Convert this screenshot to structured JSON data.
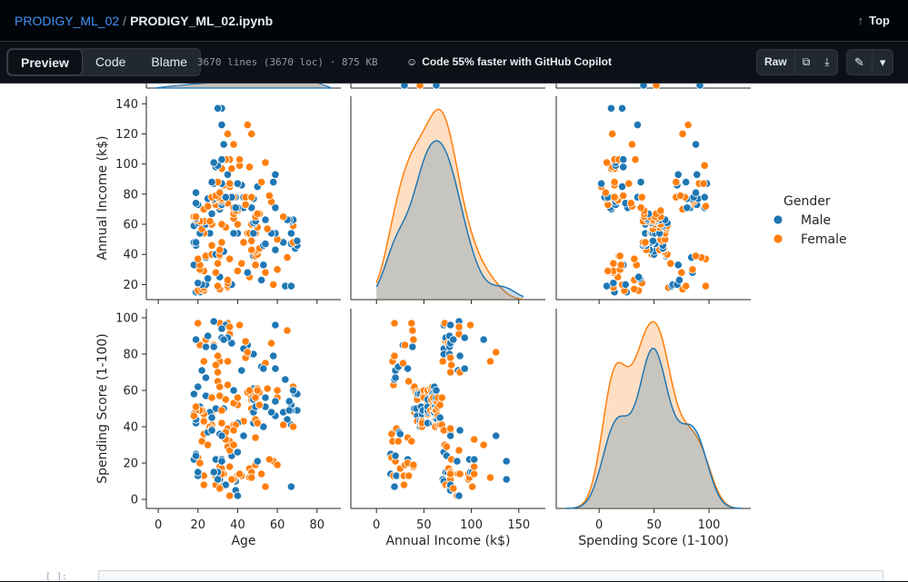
{
  "breadcrumb": {
    "repo": "PRODIGY_ML_02",
    "separator": "/",
    "file": "PRODIGY_ML_02.ipynb"
  },
  "top_link": {
    "label": "Top"
  },
  "toolbar": {
    "tabs": [
      "Preview",
      "Code",
      "Blame"
    ],
    "file_info": "3670 lines (3670 loc) · 875 KB",
    "copilot": "Code 55% faster with GitHub Copilot",
    "raw_label": "Raw"
  },
  "legend": {
    "title": "Gender",
    "items": [
      {
        "label": "Male",
        "color": "#1f77b4"
      },
      {
        "label": "Female",
        "color": "#ff7f0e"
      }
    ]
  },
  "bottom": {
    "prompt": "[ ]:"
  },
  "chart_data": {
    "type": "pairplot",
    "variables": [
      "Age",
      "Annual Income (k$)",
      "Spending Score (1-100)"
    ],
    "hue": "Gender",
    "hue_levels": [
      "Male",
      "Female"
    ],
    "colors": {
      "Male": "#1f77b4",
      "Female": "#ff7f0e"
    },
    "axes": {
      "income_y": {
        "label": "Annual Income (k$)",
        "ticks": [
          20,
          40,
          60,
          80,
          100,
          120,
          140
        ],
        "range": [
          10,
          145
        ]
      },
      "score_y": {
        "label": "Spending Score (1-100)",
        "ticks": [
          0,
          20,
          40,
          60,
          80,
          100
        ],
        "range": [
          -5,
          105
        ]
      },
      "age_x": {
        "label": "Age",
        "ticks": [
          0,
          20,
          40,
          60,
          80
        ],
        "range": [
          -6,
          92
        ]
      },
      "income_x": {
        "label": "Annual Income (k$)",
        "ticks": [
          0,
          50,
          100,
          150
        ],
        "range": [
          -27,
          178
        ]
      },
      "score_x": {
        "label": "Spending Score (1-100)",
        "ticks": [
          0,
          50,
          100
        ],
        "range": [
          -39,
          138
        ]
      }
    },
    "scatter": {
      "age_vs_income": [
        {
          "x": 19,
          "y": 15,
          "g": "Male"
        },
        {
          "x": 21,
          "y": 15,
          "g": "Male"
        },
        {
          "x": 20,
          "y": 16,
          "g": "Female"
        },
        {
          "x": 23,
          "y": 16,
          "g": "Female"
        },
        {
          "x": 31,
          "y": 17,
          "g": "Female"
        },
        {
          "x": 22,
          "y": 17,
          "g": "Female"
        },
        {
          "x": 35,
          "y": 18,
          "g": "Female"
        },
        {
          "x": 23,
          "y": 18,
          "g": "Female"
        },
        {
          "x": 64,
          "y": 19,
          "g": "Male"
        },
        {
          "x": 30,
          "y": 19,
          "g": "Female"
        },
        {
          "x": 67,
          "y": 19,
          "g": "Male"
        },
        {
          "x": 35,
          "y": 19,
          "g": "Female"
        },
        {
          "x": 58,
          "y": 20,
          "g": "Female"
        },
        {
          "x": 24,
          "y": 20,
          "g": "Male"
        },
        {
          "x": 37,
          "y": 20,
          "g": "Male"
        },
        {
          "x": 22,
          "y": 20,
          "g": "Male"
        },
        {
          "x": 35,
          "y": 21,
          "g": "Female"
        },
        {
          "x": 20,
          "y": 21,
          "g": "Male"
        },
        {
          "x": 52,
          "y": 23,
          "g": "Male"
        },
        {
          "x": 35,
          "y": 23,
          "g": "Female"
        },
        {
          "x": 46,
          "y": 25,
          "g": "Female"
        },
        {
          "x": 25,
          "y": 24,
          "g": "Male"
        },
        {
          "x": 31,
          "y": 25,
          "g": "Male"
        },
        {
          "x": 29,
          "y": 28,
          "g": "Female"
        },
        {
          "x": 54,
          "y": 28,
          "g": "Female"
        },
        {
          "x": 45,
          "y": 28,
          "g": "Male"
        },
        {
          "x": 40,
          "y": 29,
          "g": "Female"
        },
        {
          "x": 23,
          "y": 29,
          "g": "Female"
        },
        {
          "x": 60,
          "y": 30,
          "g": "Female"
        },
        {
          "x": 21,
          "y": 30,
          "g": "Female"
        },
        {
          "x": 53,
          "y": 33,
          "g": "Male"
        },
        {
          "x": 18,
          "y": 33,
          "g": "Male"
        },
        {
          "x": 49,
          "y": 33,
          "g": "Female"
        },
        {
          "x": 21,
          "y": 33,
          "g": "Female"
        },
        {
          "x": 42,
          "y": 34,
          "g": "Female"
        },
        {
          "x": 30,
          "y": 34,
          "g": "Female"
        },
        {
          "x": 36,
          "y": 37,
          "g": "Female"
        },
        {
          "x": 20,
          "y": 37,
          "g": "Female"
        },
        {
          "x": 65,
          "y": 38,
          "g": "Female"
        },
        {
          "x": 24,
          "y": 38,
          "g": "Male"
        },
        {
          "x": 48,
          "y": 39,
          "g": "Male"
        },
        {
          "x": 31,
          "y": 39,
          "g": "Female"
        },
        {
          "x": 49,
          "y": 39,
          "g": "Female"
        },
        {
          "x": 24,
          "y": 39,
          "g": "Female"
        },
        {
          "x": 50,
          "y": 40,
          "g": "Female"
        },
        {
          "x": 27,
          "y": 40,
          "g": "Female"
        },
        {
          "x": 29,
          "y": 40,
          "g": "Male"
        },
        {
          "x": 31,
          "y": 40,
          "g": "Female"
        },
        {
          "x": 49,
          "y": 42,
          "g": "Female"
        },
        {
          "x": 33,
          "y": 42,
          "g": "Male"
        },
        {
          "x": 31,
          "y": 43,
          "g": "Female"
        },
        {
          "x": 59,
          "y": 43,
          "g": "Male"
        },
        {
          "x": 50,
          "y": 43,
          "g": "Female"
        },
        {
          "x": 47,
          "y": 43,
          "g": "Female"
        },
        {
          "x": 51,
          "y": 44,
          "g": "Female"
        },
        {
          "x": 69,
          "y": 44,
          "g": "Male"
        },
        {
          "x": 27,
          "y": 46,
          "g": "Female"
        },
        {
          "x": 53,
          "y": 46,
          "g": "Male"
        },
        {
          "x": 70,
          "y": 46,
          "g": "Male"
        },
        {
          "x": 19,
          "y": 46,
          "g": "Male"
        },
        {
          "x": 67,
          "y": 47,
          "g": "Male"
        },
        {
          "x": 54,
          "y": 47,
          "g": "Male"
        },
        {
          "x": 63,
          "y": 48,
          "g": "Male"
        },
        {
          "x": 18,
          "y": 48,
          "g": "Male"
        },
        {
          "x": 43,
          "y": 48,
          "g": "Female"
        },
        {
          "x": 68,
          "y": 48,
          "g": "Female"
        },
        {
          "x": 19,
          "y": 48,
          "g": "Male"
        },
        {
          "x": 32,
          "y": 48,
          "g": "Female"
        },
        {
          "x": 70,
          "y": 49,
          "g": "Male"
        },
        {
          "x": 47,
          "y": 49,
          "g": "Female"
        },
        {
          "x": 60,
          "y": 50,
          "g": "Female"
        },
        {
          "x": 60,
          "y": 50,
          "g": "Female"
        },
        {
          "x": 59,
          "y": 54,
          "g": "Male"
        },
        {
          "x": 26,
          "y": 54,
          "g": "Male"
        },
        {
          "x": 45,
          "y": 54,
          "g": "Female"
        },
        {
          "x": 40,
          "y": 54,
          "g": "Male"
        },
        {
          "x": 23,
          "y": 54,
          "g": "Female"
        },
        {
          "x": 49,
          "y": 54,
          "g": "Female"
        },
        {
          "x": 57,
          "y": 54,
          "g": "Male"
        },
        {
          "x": 38,
          "y": 54,
          "g": "Male"
        },
        {
          "x": 67,
          "y": 54,
          "g": "Male"
        },
        {
          "x": 46,
          "y": 54,
          "g": "Female"
        },
        {
          "x": 21,
          "y": 54,
          "g": "Male"
        },
        {
          "x": 48,
          "y": 54,
          "g": "Male"
        },
        {
          "x": 55,
          "y": 57,
          "g": "Female"
        },
        {
          "x": 22,
          "y": 57,
          "g": "Female"
        },
        {
          "x": 34,
          "y": 58,
          "g": "Female"
        },
        {
          "x": 50,
          "y": 58,
          "g": "Female"
        },
        {
          "x": 68,
          "y": 59,
          "g": "Female"
        },
        {
          "x": 18,
          "y": 59,
          "g": "Male"
        },
        {
          "x": 48,
          "y": 60,
          "g": "Male"
        },
        {
          "x": 40,
          "y": 60,
          "g": "Female"
        },
        {
          "x": 32,
          "y": 60,
          "g": "Female"
        },
        {
          "x": 24,
          "y": 60,
          "g": "Male"
        },
        {
          "x": 47,
          "y": 60,
          "g": "Female"
        },
        {
          "x": 27,
          "y": 60,
          "g": "Female"
        },
        {
          "x": 48,
          "y": 61,
          "g": "Male"
        },
        {
          "x": 20,
          "y": 61,
          "g": "Male"
        },
        {
          "x": 23,
          "y": 62,
          "g": "Female"
        },
        {
          "x": 49,
          "y": 62,
          "g": "Female"
        },
        {
          "x": 67,
          "y": 62,
          "g": "Male"
        },
        {
          "x": 26,
          "y": 62,
          "g": "Female"
        },
        {
          "x": 49,
          "y": 62,
          "g": "Male"
        },
        {
          "x": 21,
          "y": 62,
          "g": "Female"
        },
        {
          "x": 66,
          "y": 63,
          "g": "Male"
        },
        {
          "x": 54,
          "y": 63,
          "g": "Male"
        },
        {
          "x": 68,
          "y": 63,
          "g": "Male"
        },
        {
          "x": 66,
          "y": 63,
          "g": "Male"
        },
        {
          "x": 65,
          "y": 63,
          "g": "Male"
        },
        {
          "x": 19,
          "y": 63,
          "g": "Female"
        },
        {
          "x": 38,
          "y": 64,
          "g": "Female"
        },
        {
          "x": 19,
          "y": 64,
          "g": "Male"
        },
        {
          "x": 18,
          "y": 65,
          "g": "Female"
        },
        {
          "x": 19,
          "y": 65,
          "g": "Female"
        },
        {
          "x": 63,
          "y": 65,
          "g": "Female"
        },
        {
          "x": 49,
          "y": 65,
          "g": "Female"
        },
        {
          "x": 51,
          "y": 67,
          "g": "Female"
        },
        {
          "x": 50,
          "y": 67,
          "g": "Female"
        },
        {
          "x": 27,
          "y": 67,
          "g": "Male"
        },
        {
          "x": 38,
          "y": 67,
          "g": "Female"
        },
        {
          "x": 40,
          "y": 69,
          "g": "Female"
        },
        {
          "x": 39,
          "y": 69,
          "g": "Female"
        },
        {
          "x": 23,
          "y": 70,
          "g": "Female"
        },
        {
          "x": 31,
          "y": 70,
          "g": "Male"
        },
        {
          "x": 43,
          "y": 71,
          "g": "Male"
        },
        {
          "x": 40,
          "y": 71,
          "g": "Male"
        },
        {
          "x": 59,
          "y": 71,
          "g": "Male"
        },
        {
          "x": 38,
          "y": 71,
          "g": "Female"
        },
        {
          "x": 47,
          "y": 71,
          "g": "Male"
        },
        {
          "x": 39,
          "y": 71,
          "g": "Male"
        },
        {
          "x": 25,
          "y": 72,
          "g": "Female"
        },
        {
          "x": 31,
          "y": 72,
          "g": "Female"
        },
        {
          "x": 20,
          "y": 73,
          "g": "Male"
        },
        {
          "x": 29,
          "y": 73,
          "g": "Female"
        },
        {
          "x": 44,
          "y": 73,
          "g": "Female"
        },
        {
          "x": 32,
          "y": 73,
          "g": "Male"
        },
        {
          "x": 19,
          "y": 74,
          "g": "Male"
        },
        {
          "x": 35,
          "y": 74,
          "g": "Female"
        },
        {
          "x": 57,
          "y": 75,
          "g": "Female"
        },
        {
          "x": 32,
          "y": 75,
          "g": "Male"
        },
        {
          "x": 28,
          "y": 76,
          "g": "Female"
        },
        {
          "x": 32,
          "y": 76,
          "g": "Female"
        },
        {
          "x": 25,
          "y": 77,
          "g": "Male"
        },
        {
          "x": 28,
          "y": 77,
          "g": "Male"
        },
        {
          "x": 48,
          "y": 77,
          "g": "Male"
        },
        {
          "x": 32,
          "y": 77,
          "g": "Female"
        },
        {
          "x": 34,
          "y": 78,
          "g": "Female"
        },
        {
          "x": 34,
          "y": 78,
          "g": "Male"
        },
        {
          "x": 43,
          "y": 78,
          "g": "Male"
        },
        {
          "x": 39,
          "y": 78,
          "g": "Male"
        },
        {
          "x": 44,
          "y": 78,
          "g": "Female"
        },
        {
          "x": 38,
          "y": 78,
          "g": "Female"
        },
        {
          "x": 47,
          "y": 78,
          "g": "Female"
        },
        {
          "x": 27,
          "y": 78,
          "g": "Female"
        },
        {
          "x": 37,
          "y": 78,
          "g": "Male"
        },
        {
          "x": 30,
          "y": 78,
          "g": "Female"
        },
        {
          "x": 34,
          "y": 78,
          "g": "Male"
        },
        {
          "x": 30,
          "y": 78,
          "g": "Female"
        },
        {
          "x": 56,
          "y": 79,
          "g": "Female"
        },
        {
          "x": 29,
          "y": 79,
          "g": "Female"
        },
        {
          "x": 19,
          "y": 81,
          "g": "Male"
        },
        {
          "x": 31,
          "y": 81,
          "g": "Female"
        },
        {
          "x": 50,
          "y": 85,
          "g": "Male"
        },
        {
          "x": 36,
          "y": 85,
          "g": "Female"
        },
        {
          "x": 42,
          "y": 86,
          "g": "Male"
        },
        {
          "x": 33,
          "y": 86,
          "g": "Female"
        },
        {
          "x": 36,
          "y": 87,
          "g": "Female"
        },
        {
          "x": 32,
          "y": 87,
          "g": "Male"
        },
        {
          "x": 40,
          "y": 87,
          "g": "Male"
        },
        {
          "x": 28,
          "y": 87,
          "g": "Male"
        },
        {
          "x": 36,
          "y": 87,
          "g": "Female"
        },
        {
          "x": 36,
          "y": 87,
          "g": "Female"
        },
        {
          "x": 52,
          "y": 88,
          "g": "Female"
        },
        {
          "x": 30,
          "y": 88,
          "g": "Female"
        },
        {
          "x": 58,
          "y": 88,
          "g": "Male"
        },
        {
          "x": 27,
          "y": 88,
          "g": "Male"
        },
        {
          "x": 59,
          "y": 93,
          "g": "Male"
        },
        {
          "x": 35,
          "y": 93,
          "g": "Male"
        },
        {
          "x": 37,
          "y": 97,
          "g": "Female"
        },
        {
          "x": 32,
          "y": 97,
          "g": "Female"
        },
        {
          "x": 46,
          "y": 98,
          "g": "Female"
        },
        {
          "x": 29,
          "y": 98,
          "g": "Male"
        },
        {
          "x": 41,
          "y": 99,
          "g": "Female"
        },
        {
          "x": 30,
          "y": 99,
          "g": "Male"
        },
        {
          "x": 54,
          "y": 101,
          "g": "Female"
        },
        {
          "x": 28,
          "y": 101,
          "g": "Male"
        },
        {
          "x": 41,
          "y": 103,
          "g": "Female"
        },
        {
          "x": 36,
          "y": 103,
          "g": "Female"
        },
        {
          "x": 34,
          "y": 103,
          "g": "Female"
        },
        {
          "x": 32,
          "y": 103,
          "g": "Male"
        },
        {
          "x": 33,
          "y": 113,
          "g": "Male"
        },
        {
          "x": 38,
          "y": 113,
          "g": "Female"
        },
        {
          "x": 47,
          "y": 120,
          "g": "Female"
        },
        {
          "x": 35,
          "y": 120,
          "g": "Female"
        },
        {
          "x": 45,
          "y": 126,
          "g": "Female"
        },
        {
          "x": 32,
          "y": 126,
          "g": "Male"
        },
        {
          "x": 32,
          "y": 137,
          "g": "Male"
        },
        {
          "x": 30,
          "y": 137,
          "g": "Male"
        }
      ]
    },
    "kde_peaks": {
      "income": {
        "Male": 68,
        "Female": 66
      },
      "score": {
        "Male": 54,
        "Female": 47
      }
    }
  }
}
